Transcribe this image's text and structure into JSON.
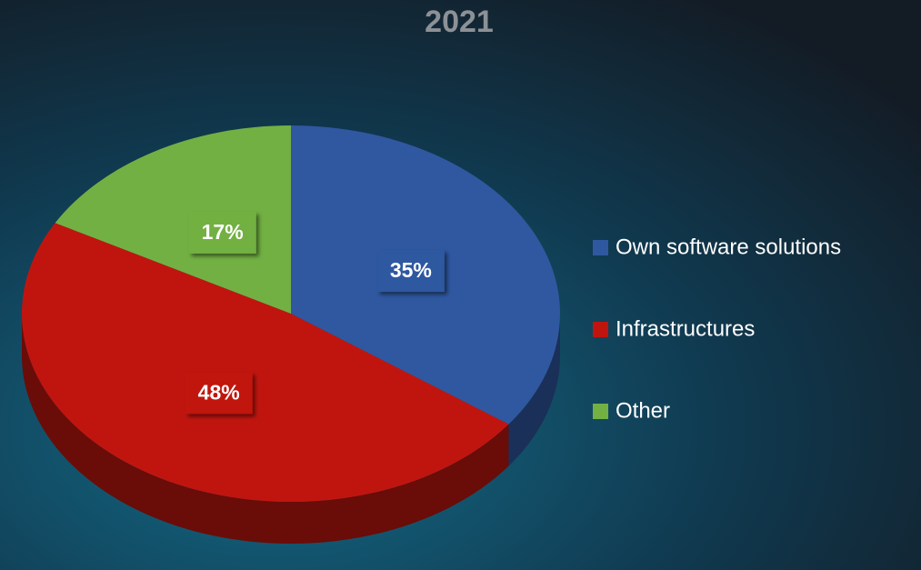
{
  "chart_data": {
    "type": "pie",
    "title": "2021",
    "categories": [
      "Own software solutions",
      "Infrastructures",
      "Other"
    ],
    "values": [
      35,
      48,
      17
    ],
    "value_labels": [
      "35%",
      "48%",
      "17%"
    ],
    "colors": [
      "#2f58a0",
      "#c0150f",
      "#72b043"
    ],
    "legend": "right"
  }
}
